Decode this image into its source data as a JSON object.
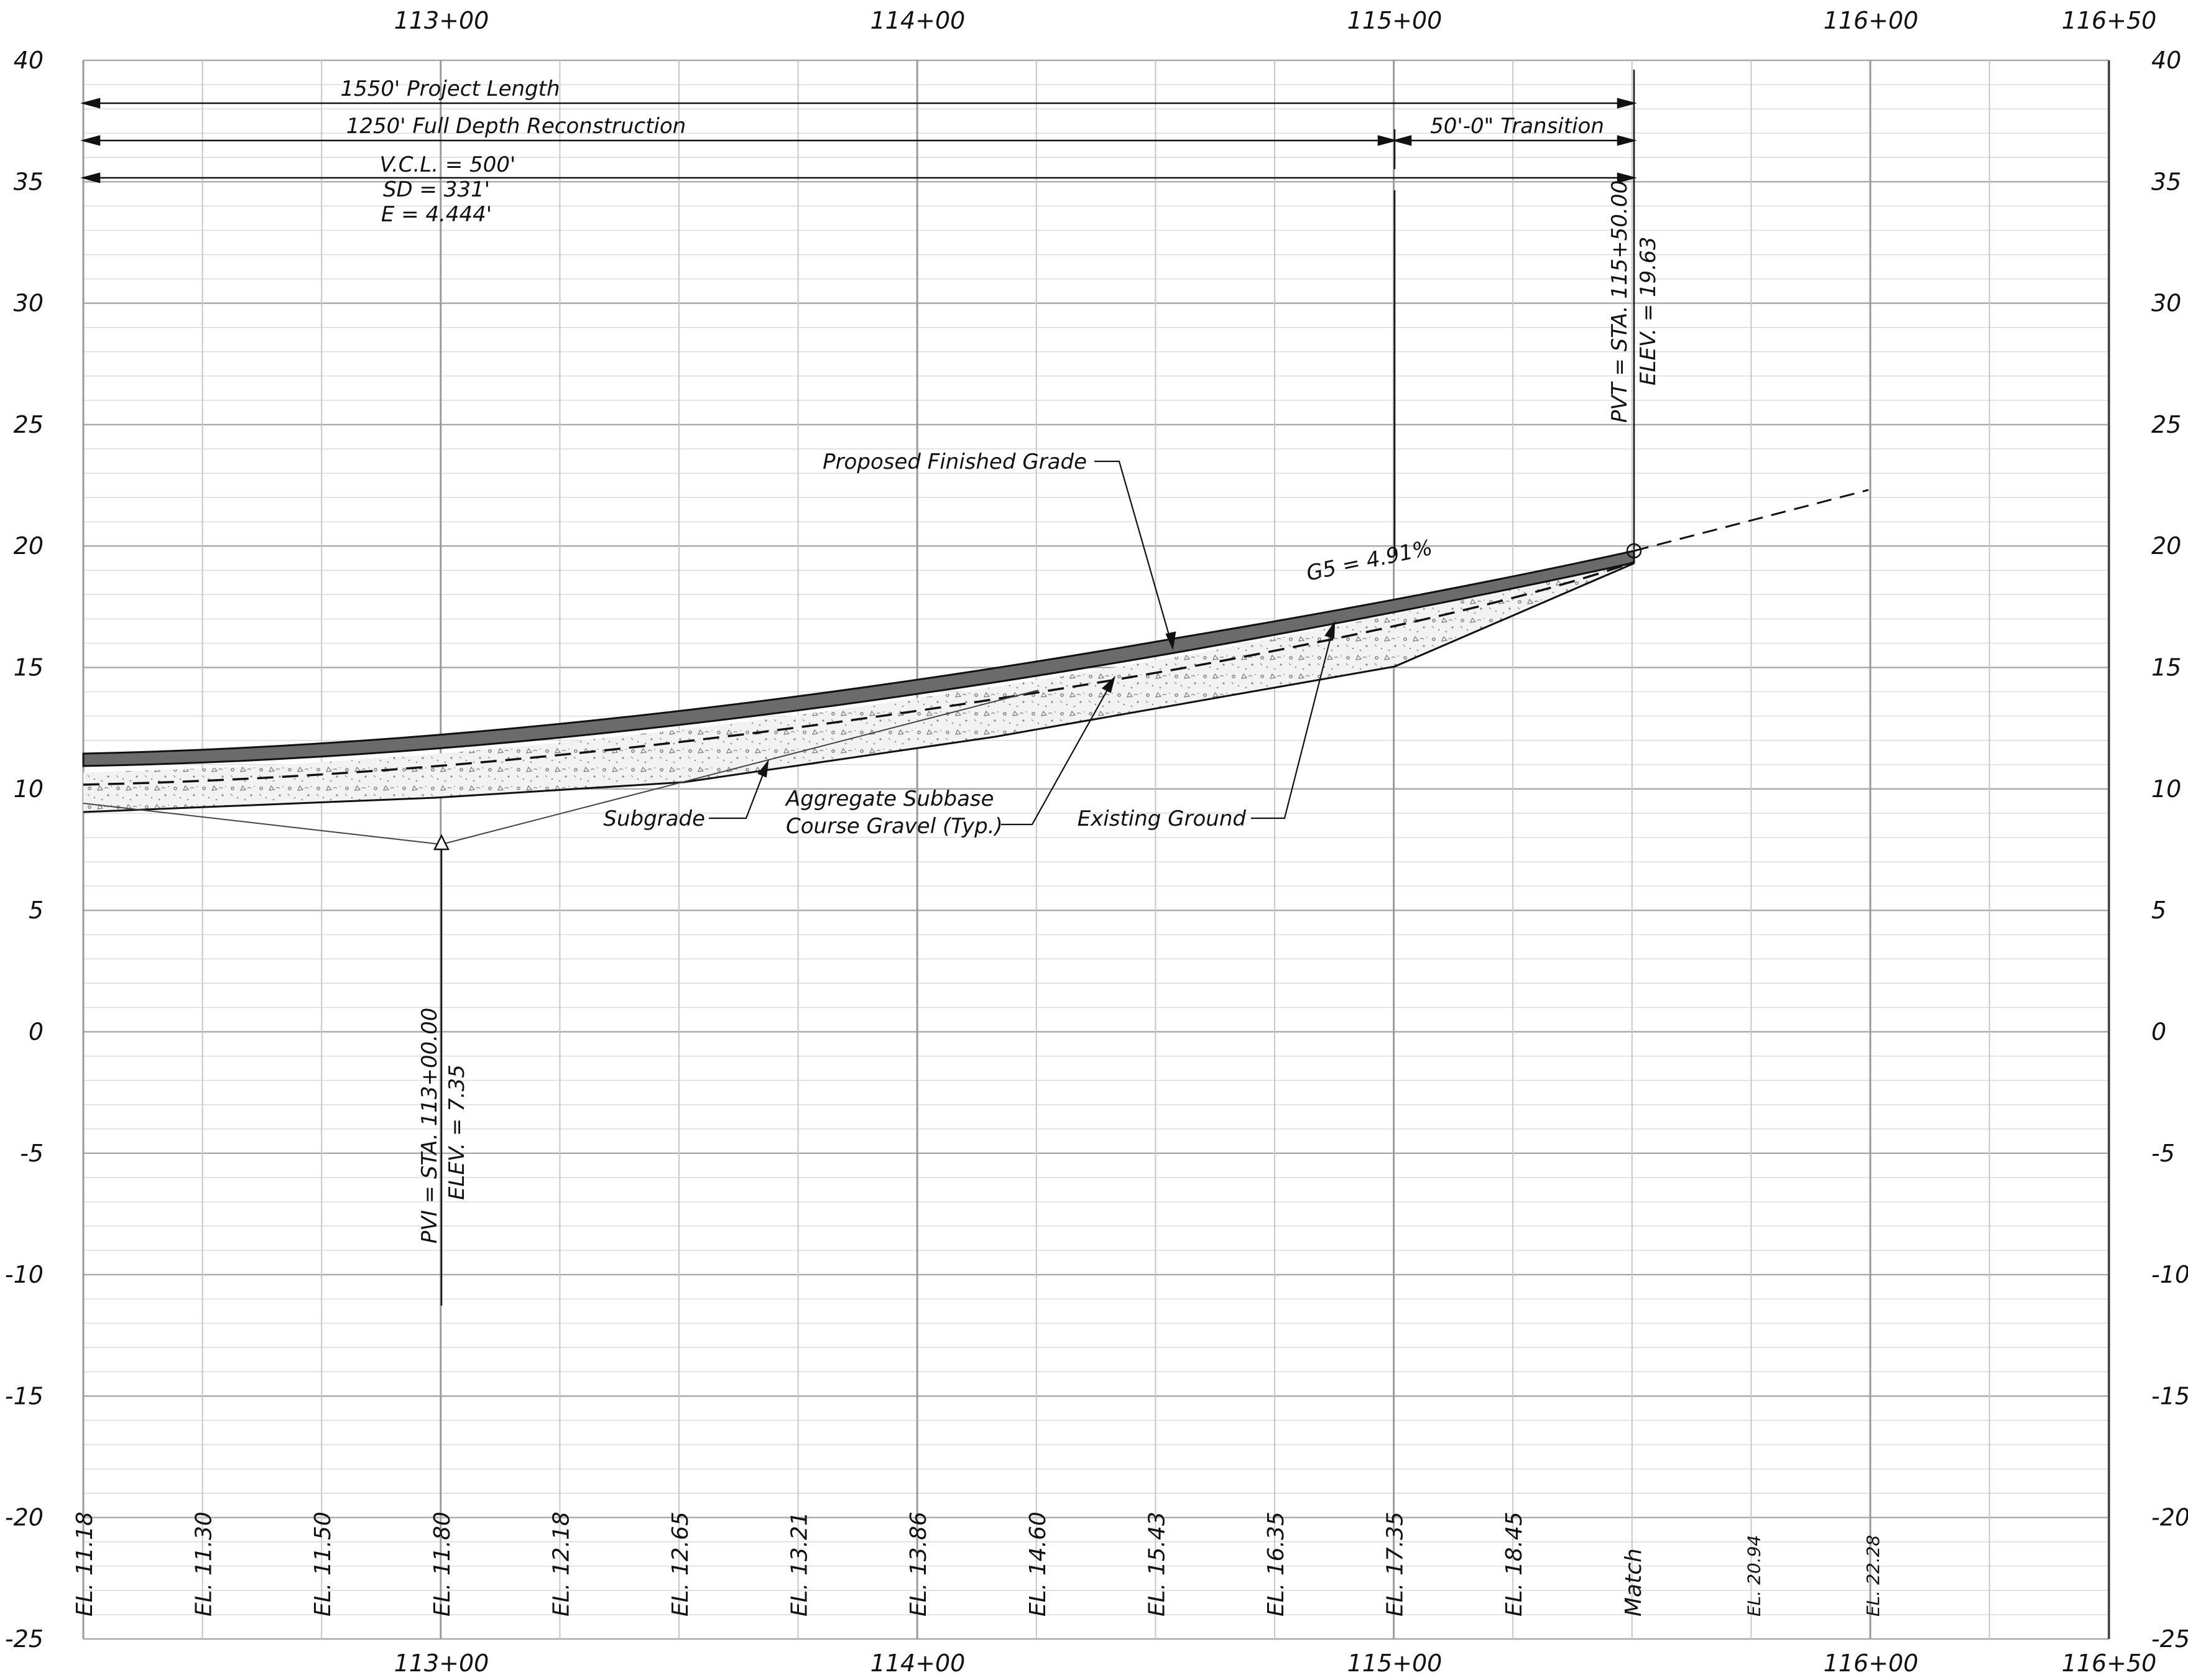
{
  "drawing": {
    "stations_top": [
      "113+00",
      "114+00",
      "115+00",
      "116+00",
      "116+50"
    ],
    "stations_bottom": [
      "113+00",
      "114+00",
      "115+00",
      "116+00",
      "116+50"
    ],
    "elevations": [
      "40",
      "35",
      "30",
      "25",
      "20",
      "15",
      "10",
      "5",
      "0",
      "-5",
      "-10",
      "-15",
      "-20",
      "-25"
    ],
    "dimensions": {
      "project_length": "1550' Project Length",
      "full_depth": "1250' Full Depth Reconstruction",
      "transition": "50'-0\" Transition",
      "vcl": "V.C.L. = 500'",
      "sd": "SD = 331'",
      "e": "E = 4.444'"
    },
    "pvt": {
      "station": "PVT = STA. 115+50.00",
      "elev": "ELEV. = 19.63"
    },
    "pvi": {
      "station": "PVI = STA. 113+00.00",
      "elev": "ELEV. = 7.35"
    },
    "grade": "G5 = 4.91%",
    "callouts": {
      "finished_grade": "Proposed Finished Grade",
      "subgrade": "Subgrade",
      "aggregate_1": "Aggregate Subbase",
      "aggregate_2": "Course Gravel (Typ.)",
      "existing": "Existing Ground"
    },
    "bottom_elevations": [
      "EL. 11.18",
      "EL. 11.30",
      "EL. 11.50",
      "EL. 11.80",
      "EL. 12.18",
      "EL. 12.65",
      "EL. 13.21",
      "EL. 13.86",
      "EL. 14.60",
      "EL. 15.43",
      "EL. 16.35",
      "EL. 17.35",
      "EL. 18.45",
      "Match"
    ],
    "bottom_elevations_small": [
      "EL. 20.94",
      "EL. 22.28"
    ]
  }
}
